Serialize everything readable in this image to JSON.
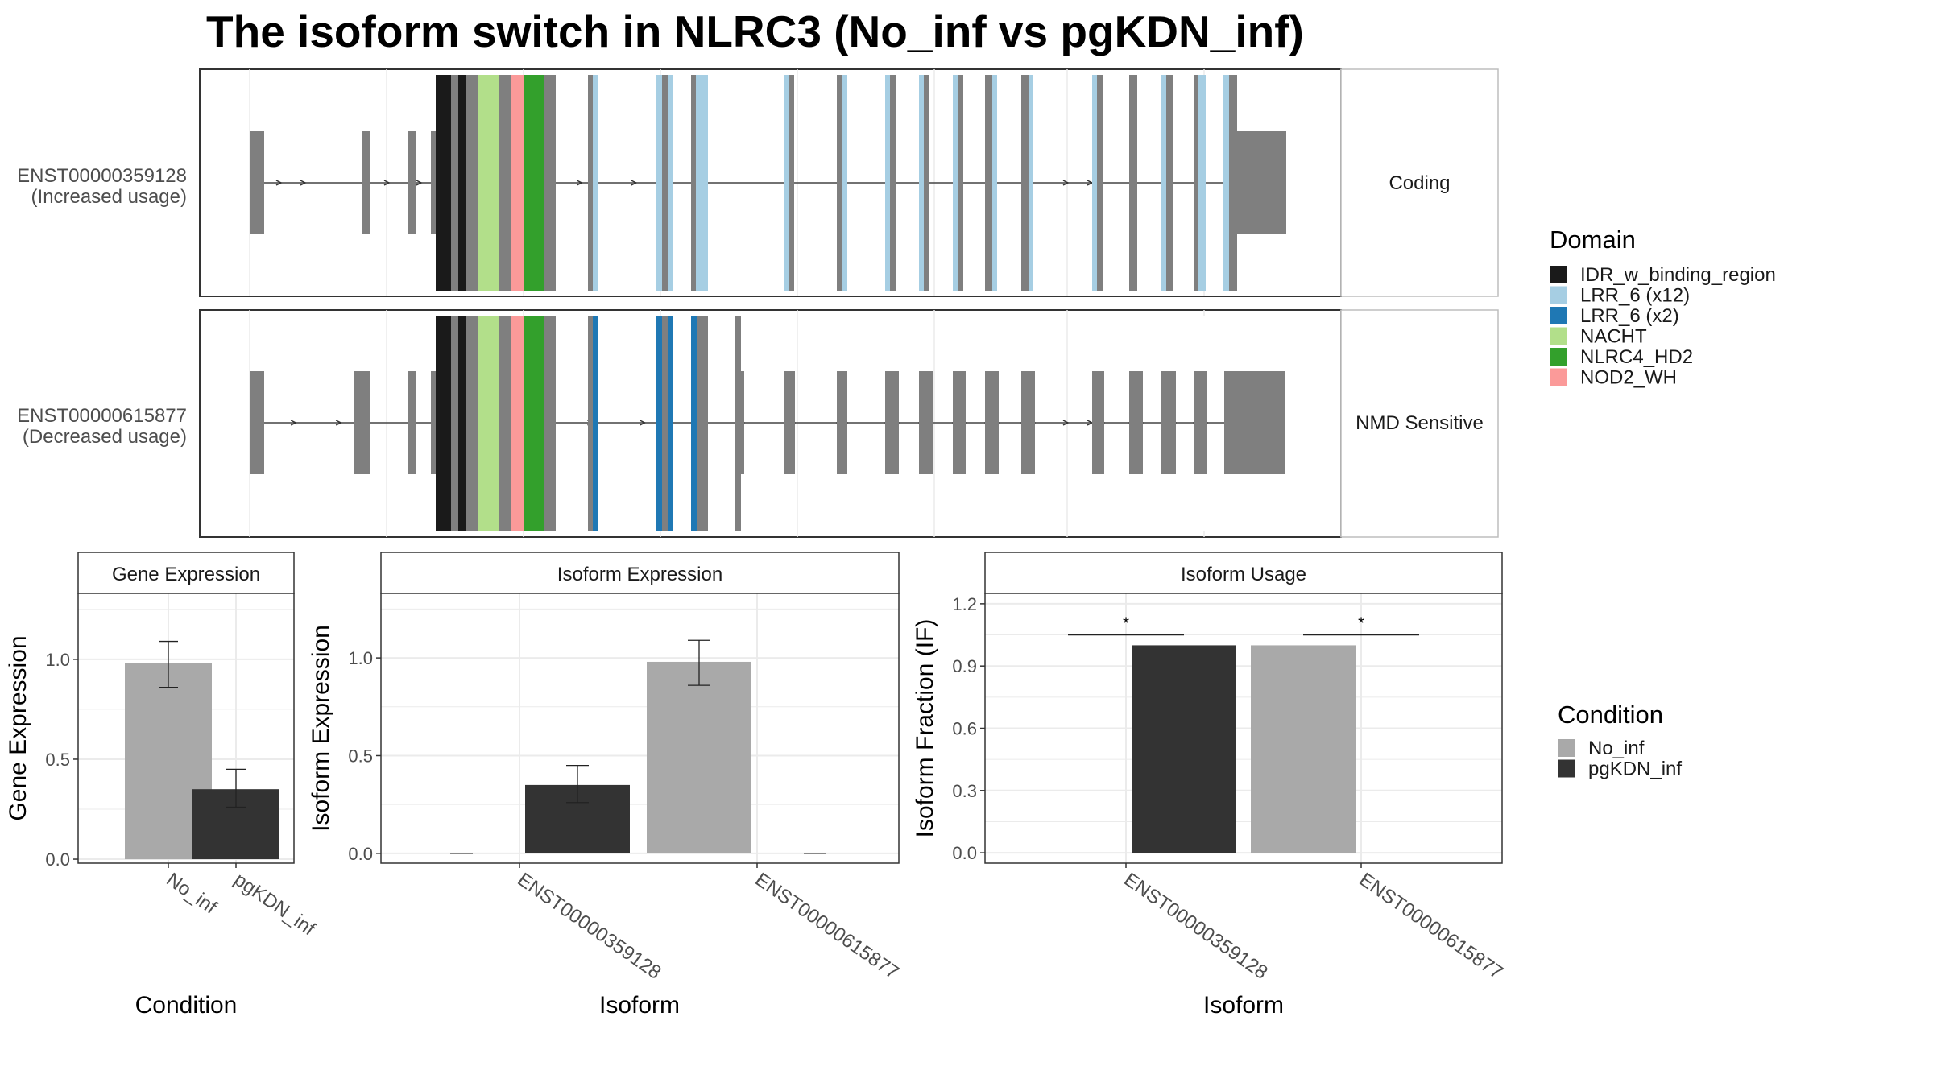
{
  "title": "The isoform switch in NLRC3 (No_inf vs pgKDN_inf)",
  "colors": {
    "IDR_w_binding_region": "#1a1a1a",
    "LRR_6 (x12)": "#a6cee3",
    "LRR_6 (x2)": "#1f78b4",
    "NACHT": "#b2df8a",
    "NLRC4_HD2": "#33a02c",
    "NOD2_WH": "#fb9a99",
    "exon": "#7f7f7f",
    "No_inf": "#a9a9a9",
    "pgKDN_inf": "#333333"
  },
  "domain_legend": {
    "title": "Domain",
    "items": [
      {
        "label": "IDR_w_binding_region",
        "color": "#1a1a1a"
      },
      {
        "label": "LRR_6 (x12)",
        "color": "#a6cee3"
      },
      {
        "label": "LRR_6 (x2)",
        "color": "#1f78b4"
      },
      {
        "label": "NACHT",
        "color": "#b2df8a"
      },
      {
        "label": "NLRC4_HD2",
        "color": "#33a02c"
      },
      {
        "label": "NOD2_WH",
        "color": "#fb9a99"
      }
    ]
  },
  "condition_legend": {
    "title": "Condition",
    "items": [
      {
        "label": "No_inf",
        "color": "#a9a9a9"
      },
      {
        "label": "pgKDN_inf",
        "color": "#333333"
      }
    ]
  },
  "chart_data": [
    {
      "type": "transcript-structure",
      "tracks": [
        {
          "name": "ENST00000359128",
          "sublabel": "(Increased usage)",
          "strip": "Coding"
        },
        {
          "name": "ENST00000615877",
          "sublabel": "(Decreased usage)",
          "strip": "NMD Sensitive"
        }
      ]
    },
    {
      "type": "bar",
      "strip": "Gene Expression",
      "xlabel": "Condition",
      "ylabel": "Gene Expression",
      "categories": [
        "No_inf",
        "pgKDN_inf"
      ],
      "values": [
        0.98,
        0.35
      ],
      "errors": [
        [
          0.86,
          1.09
        ],
        [
          0.26,
          0.45
        ]
      ],
      "yticks": [
        "0.0",
        "0.5",
        "1.0"
      ],
      "ylim": [
        -0.02,
        1.33
      ]
    },
    {
      "type": "bar",
      "strip": "Isoform Expression",
      "xlabel": "Isoform",
      "ylabel": "Isoform Expression",
      "categories": [
        "ENST00000359128",
        "ENST00000615877"
      ],
      "series": [
        {
          "name": "No_inf",
          "values": [
            0.0,
            0.98
          ],
          "errors": [
            [
              0.0,
              0.0
            ],
            [
              0.86,
              1.09
            ]
          ]
        },
        {
          "name": "pgKDN_inf",
          "values": [
            0.35,
            0.0
          ],
          "errors": [
            [
              0.26,
              0.45
            ],
            [
              0.0,
              0.0
            ]
          ]
        }
      ],
      "yticks": [
        "0.0",
        "0.5",
        "1.0"
      ],
      "ylim": [
        -0.05,
        1.33
      ]
    },
    {
      "type": "bar",
      "strip": "Isoform Usage",
      "xlabel": "Isoform",
      "ylabel": "Isoform Fraction (IF)",
      "categories": [
        "ENST00000359128",
        "ENST00000615877"
      ],
      "series": [
        {
          "name": "No_inf",
          "values": [
            0.0,
            1.0
          ]
        },
        {
          "name": "pgKDN_inf",
          "values": [
            1.0,
            0.0
          ]
        }
      ],
      "significance": [
        "*",
        "*"
      ],
      "yticks": [
        "0.0",
        "0.3",
        "0.6",
        "0.9",
        "1.2"
      ],
      "ylim": [
        -0.05,
        1.25
      ]
    }
  ]
}
